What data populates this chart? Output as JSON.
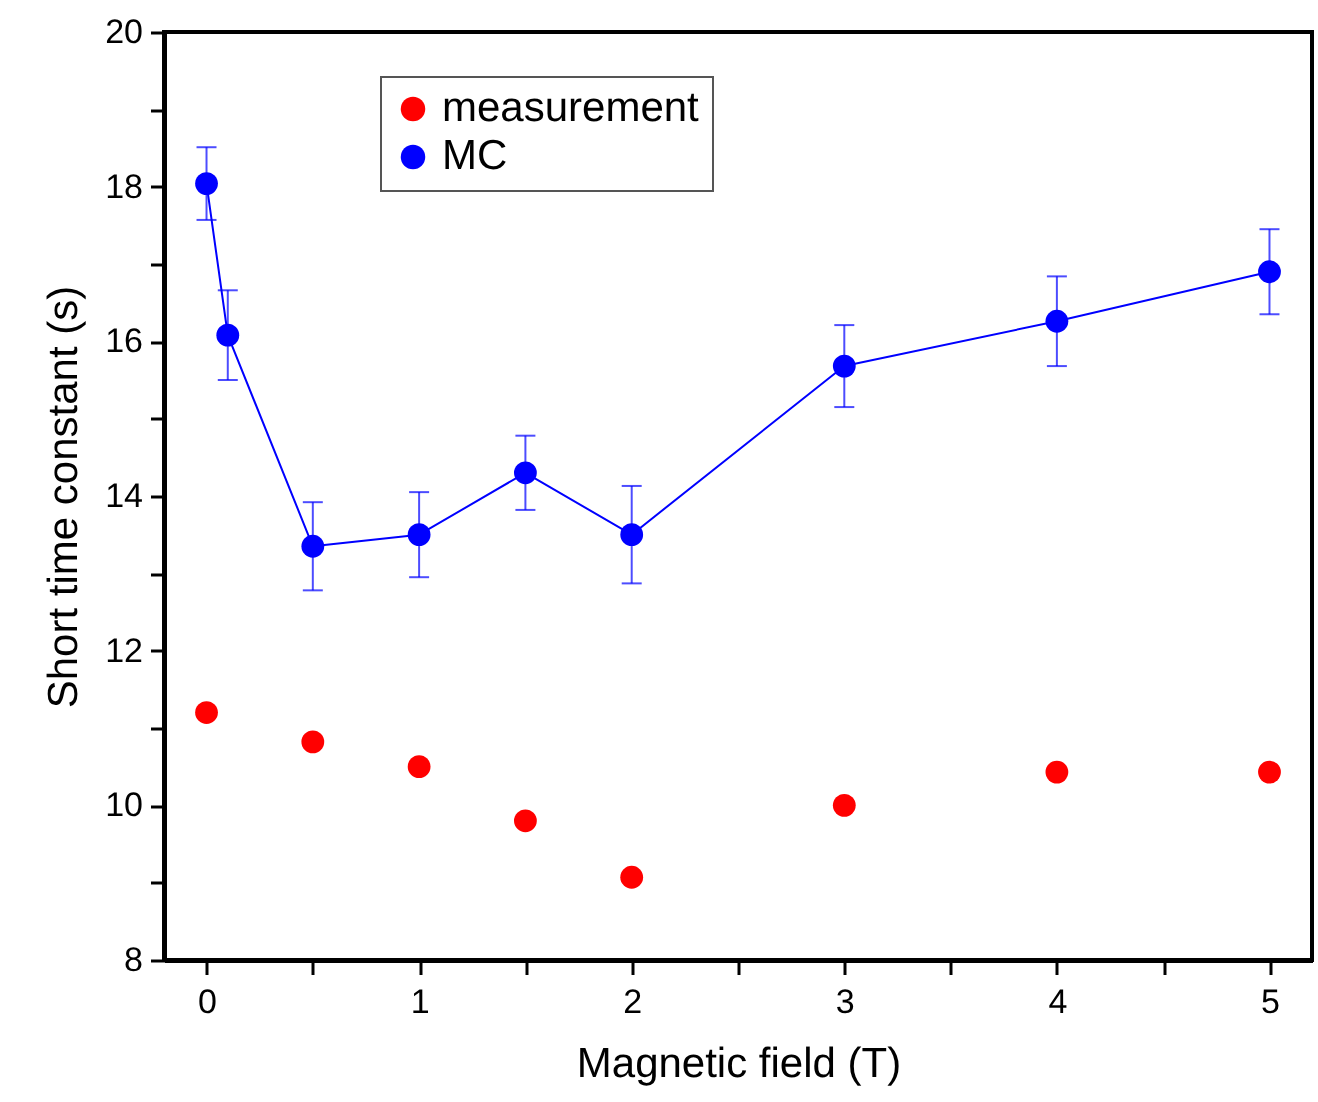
{
  "chart_data": {
    "type": "scatter",
    "xlabel": "Magnetic field (T)",
    "ylabel": "Short time constant (s)",
    "xlim": [
      -0.2,
      5.2
    ],
    "ylim": [
      8,
      20
    ],
    "xticks": [
      0,
      {
        "value": 0.5,
        "label": null
      },
      1,
      {
        "value": 1.5,
        "label": null
      },
      2,
      {
        "value": 2.5,
        "label": null
      },
      3,
      {
        "value": 3.5,
        "label": null
      },
      4,
      {
        "value": 4.5,
        "label": null
      },
      5
    ],
    "yticks": [
      8,
      {
        "value": 9,
        "label": null
      },
      10,
      {
        "value": 11,
        "label": null
      },
      12,
      {
        "value": 13,
        "label": null
      },
      14,
      {
        "value": 15,
        "label": null
      },
      16,
      {
        "value": 17,
        "label": null
      },
      18,
      {
        "value": 19,
        "label": null
      },
      20
    ],
    "legend": "top left",
    "grid": false,
    "marker": "circle",
    "line_style": "solid",
    "series": [
      {
        "name": "measurement",
        "type": "scatter",
        "color": "#ff0000",
        "x": [
          0,
          0.5,
          1,
          1.5,
          2,
          3,
          4,
          5
        ],
        "values": [
          11.2,
          10.82,
          10.5,
          9.8,
          9.07,
          10.0,
          10.43,
          10.43
        ],
        "errors": [
          0.05,
          0.05,
          0.05,
          0.05,
          0.05,
          0.05,
          0.05,
          0.05
        ]
      },
      {
        "name": "MC",
        "type": "line",
        "color": "#0000ff",
        "x": [
          0,
          0.1,
          0.5,
          1,
          1.5,
          2,
          3,
          4,
          5
        ],
        "values": [
          18.04,
          16.08,
          13.35,
          13.5,
          14.3,
          13.5,
          15.68,
          16.26,
          16.9
        ],
        "errors": [
          0.47,
          0.58,
          0.57,
          0.55,
          0.48,
          0.63,
          0.53,
          0.58,
          0.55
        ]
      }
    ]
  }
}
